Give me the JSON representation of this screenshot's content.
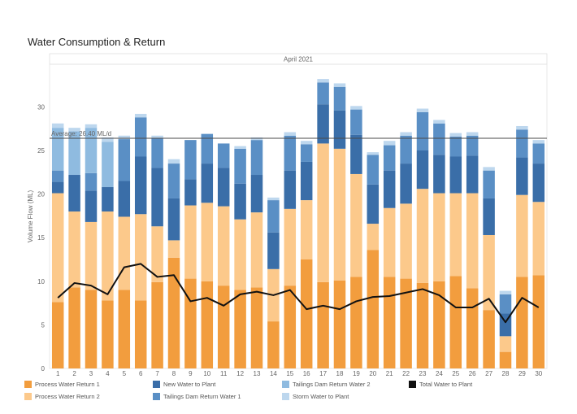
{
  "chart_title": "Water Consumption & Return",
  "chart_data": {
    "type": "bar",
    "title": "Water Consumption & Return",
    "header": "April 2021",
    "xlabel": "",
    "ylabel": "Volume Flow (ML)",
    "ylim": [
      0,
      34
    ],
    "yticks": [
      0,
      5,
      10,
      15,
      20,
      25,
      30
    ],
    "reference_line": {
      "value": 26.4,
      "label": "Average: 26.40 ML/d"
    },
    "categories": [
      "1",
      "2",
      "3",
      "4",
      "5",
      "6",
      "7",
      "8",
      "9",
      "10",
      "11",
      "12",
      "13",
      "14",
      "15",
      "16",
      "17",
      "18",
      "19",
      "20",
      "21",
      "22",
      "23",
      "24",
      "25",
      "26",
      "27",
      "28",
      "29",
      "30"
    ],
    "stack_series": [
      {
        "name": "Process Water Return 1",
        "color": "#f29d3e",
        "values": [
          7.6,
          9.3,
          9.0,
          7.8,
          9.0,
          7.8,
          9.9,
          12.7,
          10.3,
          10.0,
          9.5,
          9.0,
          9.3,
          5.4,
          9.5,
          12.5,
          9.9,
          10.1,
          10.5,
          13.6,
          10.5,
          10.3,
          9.8,
          10.0,
          10.6,
          9.2,
          6.7,
          1.9,
          10.5,
          10.7
        ]
      },
      {
        "name": "Process Water Return 2",
        "color": "#fcc98b",
        "values": [
          12.5,
          8.7,
          7.8,
          10.2,
          8.4,
          9.9,
          6.4,
          2.0,
          8.4,
          9.0,
          9.1,
          8.1,
          8.6,
          6.0,
          8.8,
          6.8,
          15.9,
          15.1,
          11.8,
          3.0,
          7.9,
          8.6,
          10.8,
          10.1,
          9.5,
          10.9,
          8.6,
          1.8,
          9.4,
          8.4
        ]
      },
      {
        "name": "New Water to Plant",
        "color": "#3a6ea8",
        "values": [
          1.3,
          4.2,
          3.6,
          2.8,
          4.1,
          6.6,
          6.7,
          4.8,
          3.0,
          4.5,
          4.4,
          4.1,
          4.3,
          4.2,
          4.4,
          4.4,
          4.5,
          4.4,
          4.5,
          4.5,
          4.3,
          4.6,
          4.4,
          4.4,
          4.2,
          4.3,
          4.2,
          2.6,
          4.3,
          4.4
        ]
      },
      {
        "name": "Tailings Dam Return Water 1",
        "color": "#5a8fc5",
        "values": [
          1.3,
          0,
          2.0,
          0,
          4.8,
          4.5,
          3.4,
          4.0,
          4.5,
          3.4,
          2.8,
          4.0,
          4.0,
          3.7,
          4.0,
          2.0,
          2.5,
          2.7,
          2.9,
          3.4,
          2.9,
          3.2,
          4.4,
          3.6,
          2.3,
          2.3,
          3.2,
          2.2,
          3.2,
          2.3
        ]
      },
      {
        "name": "Tailings Dam Return Water 2",
        "color": "#8fbbe0",
        "values": [
          4.9,
          5.0,
          5.2,
          5.2,
          0,
          0,
          0,
          0,
          0,
          0,
          0,
          0,
          0,
          0,
          0,
          0,
          0,
          0,
          0,
          0,
          0,
          0,
          0,
          0,
          0,
          0,
          0,
          0,
          0,
          0
        ]
      },
      {
        "name": "Storm Water to Plant",
        "color": "#bdd7ee",
        "values": [
          0.5,
          0.4,
          0.4,
          0.5,
          0.4,
          0.4,
          0.3,
          0.5,
          0,
          0,
          0,
          0.3,
          0.3,
          0.3,
          0.4,
          0.4,
          0.4,
          0.4,
          0.4,
          0.3,
          0.5,
          0.4,
          0.4,
          0.4,
          0.4,
          0.4,
          0.4,
          0.4,
          0.4,
          0.4
        ]
      }
    ],
    "line_series": {
      "name": "Total Water to Plant",
      "color": "#111111",
      "values": [
        8.1,
        9.8,
        9.5,
        8.5,
        11.6,
        12.0,
        10.5,
        10.7,
        7.7,
        8.1,
        7.2,
        8.5,
        8.8,
        8.4,
        9.0,
        6.8,
        7.2,
        6.8,
        7.7,
        8.2,
        8.3,
        8.7,
        9.1,
        8.4,
        7.0,
        7.0,
        8.0,
        5.3,
        8.1,
        7.0
      ]
    }
  },
  "legend": [
    {
      "label": "Process Water Return 1",
      "color": "#f29d3e",
      "kind": "box"
    },
    {
      "label": "Process Water Return 2",
      "color": "#fcc98b",
      "kind": "box"
    },
    {
      "label": "New Water to Plant",
      "color": "#3a6ea8",
      "kind": "box"
    },
    {
      "label": "Tailings Dam Return Water 1",
      "color": "#5a8fc5",
      "kind": "box"
    },
    {
      "label": "Tailings Dam Return Water 2",
      "color": "#8fbbe0",
      "kind": "box"
    },
    {
      "label": "Storm Water to Plant",
      "color": "#bdd7ee",
      "kind": "box"
    },
    {
      "label": "Total Water to Plant",
      "color": "#111111",
      "kind": "box"
    }
  ]
}
